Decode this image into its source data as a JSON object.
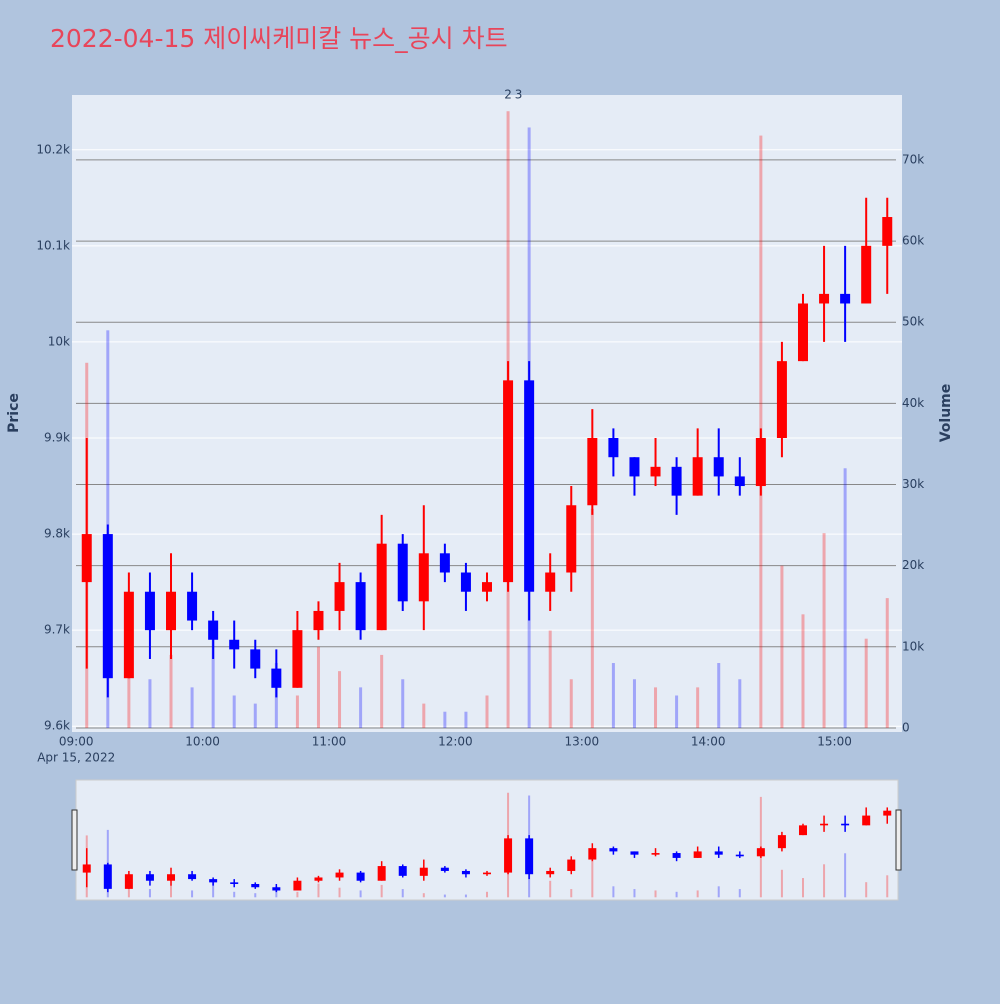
{
  "chart_data": {
    "type": "candlestick",
    "title": "2022-04-15 제이씨케미칼 뉴스_공시 차트",
    "x": [
      "09:00",
      "09:10",
      "09:20",
      "09:30",
      "09:40",
      "09:50",
      "10:00",
      "10:10",
      "10:20",
      "10:30",
      "10:40",
      "10:50",
      "11:00",
      "11:10",
      "11:20",
      "11:30",
      "11:40",
      "11:50",
      "12:00",
      "12:10",
      "12:20",
      "12:30",
      "12:40",
      "12:50",
      "13:00",
      "13:10",
      "13:20",
      "13:30",
      "13:40",
      "13:50",
      "14:00",
      "14:10",
      "14:20",
      "14:30",
      "14:40",
      "14:50",
      "15:00",
      "15:10",
      "15:20"
    ],
    "open": [
      9750,
      9800,
      9650,
      9740,
      9700,
      9740,
      9710,
      9690,
      9680,
      9660,
      9640,
      9700,
      9720,
      9750,
      9700,
      9790,
      9730,
      9780,
      9760,
      9740,
      9750,
      9960,
      9740,
      9760,
      9830,
      9900,
      9880,
      9860,
      9870,
      9840,
      9880,
      9860,
      9850,
      9900,
      9980,
      10040,
      10050,
      10040,
      10100
    ],
    "high": [
      9900,
      9810,
      9760,
      9760,
      9780,
      9760,
      9720,
      9710,
      9690,
      9680,
      9720,
      9730,
      9770,
      9760,
      9820,
      9800,
      9830,
      9790,
      9770,
      9760,
      9980,
      9980,
      9780,
      9850,
      9930,
      9910,
      9880,
      9900,
      9880,
      9910,
      9910,
      9880,
      9910,
      10000,
      10050,
      10100,
      10100,
      10150,
      10150
    ],
    "low": [
      9660,
      9630,
      9650,
      9670,
      9670,
      9700,
      9670,
      9660,
      9650,
      9630,
      9640,
      9690,
      9700,
      9690,
      9700,
      9720,
      9700,
      9750,
      9720,
      9730,
      9740,
      9710,
      9720,
      9740,
      9820,
      9860,
      9840,
      9850,
      9820,
      9840,
      9840,
      9840,
      9840,
      9880,
      9980,
      10000,
      10000,
      10040,
      10050
    ],
    "close": [
      9800,
      9650,
      9740,
      9700,
      9740,
      9710,
      9690,
      9680,
      9660,
      9640,
      9700,
      9720,
      9750,
      9700,
      9790,
      9730,
      9780,
      9760,
      9740,
      9750,
      9960,
      9740,
      9760,
      9830,
      9900,
      9880,
      9860,
      9870,
      9840,
      9880,
      9860,
      9850,
      9900,
      9980,
      10040,
      10050,
      10040,
      10100,
      10130
    ],
    "volume": [
      45000,
      49000,
      12000,
      6000,
      9000,
      5000,
      11000,
      4000,
      3000,
      8000,
      4000,
      10000,
      7000,
      5000,
      9000,
      6000,
      3000,
      2000,
      2000,
      4000,
      76000,
      74000,
      12000,
      6000,
      27000,
      8000,
      6000,
      5000,
      4000,
      5000,
      8000,
      6000,
      73000,
      20000,
      14000,
      24000,
      32000,
      11000,
      16000
    ],
    "increasing_color": "#ff0000",
    "decreasing_color": "#0000ff",
    "xlim": [
      "08:58",
      "15:32"
    ],
    "xticks": [
      "09:00",
      "10:00",
      "11:00",
      "12:00",
      "13:00",
      "14:00",
      "15:00"
    ],
    "x_date_label": "Apr 15, 2022",
    "ylim": [
      9594,
      10257
    ],
    "yticks": [
      {
        "value": 9600,
        "label": "9.6k"
      },
      {
        "value": 9700,
        "label": "9.7k"
      },
      {
        "value": 9800,
        "label": "9.8k"
      },
      {
        "value": 9900,
        "label": "9.9k"
      },
      {
        "value": 10000,
        "label": "10k"
      },
      {
        "value": 10100,
        "label": "10.1k"
      },
      {
        "value": 10200,
        "label": "10.2k"
      }
    ],
    "y2lim": [
      -500,
      78000
    ],
    "y2ticks": [
      0,
      {
        "value": 10000,
        "label": "10k"
      },
      {
        "value": 20000,
        "label": "20k"
      },
      {
        "value": 30000,
        "label": "30k"
      },
      {
        "value": 40000,
        "label": "40k"
      },
      {
        "value": 50000,
        "label": "50k"
      },
      {
        "value": 60000,
        "label": "60k"
      },
      {
        "value": 70000,
        "label": "70k"
      }
    ],
    "ylabel": "Price",
    "y2label": "Volume",
    "annotations": [
      {
        "x": "12:25",
        "text": "2"
      },
      {
        "x": "12:30",
        "text": "3"
      }
    ],
    "grid": true,
    "rangeslider": true
  }
}
